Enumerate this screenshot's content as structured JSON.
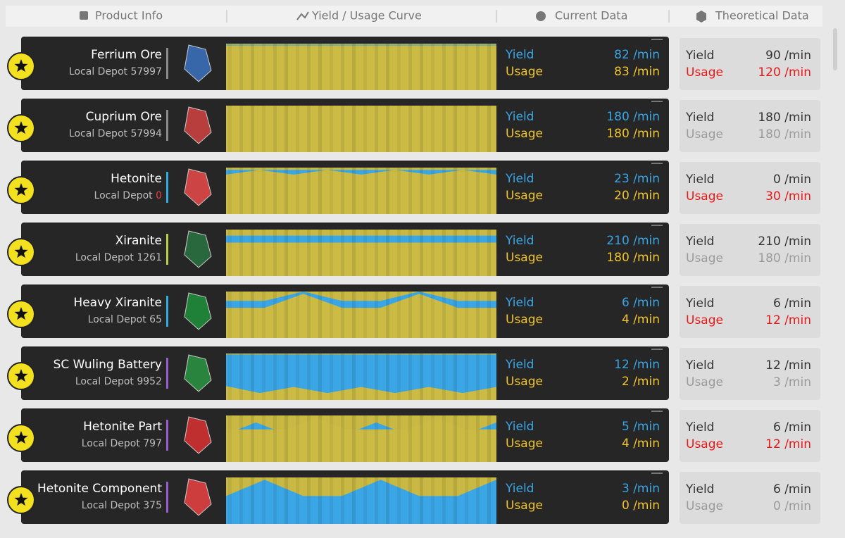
{
  "header": {
    "product_info": "Product Info",
    "curve": "Yield / Usage Curve",
    "current": "Current Data",
    "theoretical": "Theoretical Data"
  },
  "rows": [
    {
      "name": "Ferrium Ore",
      "depot_label": "Local Depot",
      "depot_count": "57997",
      "depot_alert": false,
      "accent": "#8a8a8a",
      "current": {
        "yield_label": "Yield",
        "yield": "82 /min",
        "usage_label": "Usage",
        "usage": "83 /min"
      },
      "theoretical": {
        "yield_label": "Yield",
        "yield": "90 /min",
        "usage_label": "Usage",
        "usage": "120 /min",
        "alert": true
      }
    },
    {
      "name": "Cuprium Ore",
      "depot_label": "Local Depot",
      "depot_count": "57994",
      "depot_alert": false,
      "accent": "#8a8a8a",
      "current": {
        "yield_label": "Yield",
        "yield": "180 /min",
        "usage_label": "Usage",
        "usage": "180 /min"
      },
      "theoretical": {
        "yield_label": "Yield",
        "yield": "180 /min",
        "usage_label": "Usage",
        "usage": "180 /min",
        "alert": false
      }
    },
    {
      "name": "Hetonite",
      "depot_label": "Local Depot",
      "depot_count": "0",
      "depot_alert": true,
      "accent": "#35a8e0",
      "current": {
        "yield_label": "Yield",
        "yield": "23 /min",
        "usage_label": "Usage",
        "usage": "20 /min"
      },
      "theoretical": {
        "yield_label": "Yield",
        "yield": "0 /min",
        "usage_label": "Usage",
        "usage": "30 /min",
        "alert": true
      }
    },
    {
      "name": "Xiranite",
      "depot_label": "Local Depot",
      "depot_count": "1261",
      "depot_alert": false,
      "accent": "#b8d040",
      "current": {
        "yield_label": "Yield",
        "yield": "210 /min",
        "usage_label": "Usage",
        "usage": "180 /min"
      },
      "theoretical": {
        "yield_label": "Yield",
        "yield": "210 /min",
        "usage_label": "Usage",
        "usage": "180 /min",
        "alert": false
      }
    },
    {
      "name": "Heavy Xiranite",
      "depot_label": "Local Depot",
      "depot_count": "65",
      "depot_alert": false,
      "accent": "#35a8e0",
      "current": {
        "yield_label": "Yield",
        "yield": "6 /min",
        "usage_label": "Usage",
        "usage": "4 /min"
      },
      "theoretical": {
        "yield_label": "Yield",
        "yield": "6 /min",
        "usage_label": "Usage",
        "usage": "12 /min",
        "alert": true
      }
    },
    {
      "name": "SC Wuling Battery",
      "depot_label": "Local Depot",
      "depot_count": "9952",
      "depot_alert": false,
      "accent": "#9a5ad0",
      "current": {
        "yield_label": "Yield",
        "yield": "12 /min",
        "usage_label": "Usage",
        "usage": "2 /min"
      },
      "theoretical": {
        "yield_label": "Yield",
        "yield": "12 /min",
        "usage_label": "Usage",
        "usage": "3 /min",
        "alert": false
      }
    },
    {
      "name": "Hetonite Part",
      "depot_label": "Local Depot",
      "depot_count": "797",
      "depot_alert": false,
      "accent": "#9a5ad0",
      "current": {
        "yield_label": "Yield",
        "yield": "5 /min",
        "usage_label": "Usage",
        "usage": "4 /min"
      },
      "theoretical": {
        "yield_label": "Yield",
        "yield": "6 /min",
        "usage_label": "Usage",
        "usage": "12 /min",
        "alert": true
      }
    },
    {
      "name": "Hetonite Component",
      "depot_label": "Local Depot",
      "depot_count": "375",
      "depot_alert": false,
      "accent": "#9a5ad0",
      "current": {
        "yield_label": "Yield",
        "yield": "3 /min",
        "usage_label": "Usage",
        "usage": "0 /min"
      },
      "theoretical": {
        "yield_label": "Yield",
        "yield": "6 /min",
        "usage_label": "Usage",
        "usage": "0 /min",
        "alert": false
      }
    }
  ]
}
